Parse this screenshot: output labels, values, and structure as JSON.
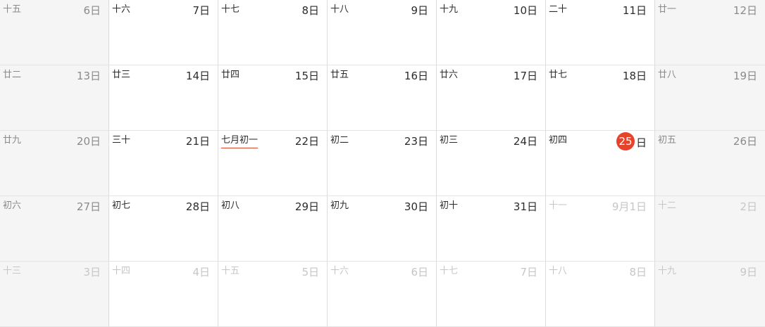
{
  "calendar": {
    "weeks": [
      [
        {
          "lunar": "十五",
          "day": "6日",
          "weekend": true
        },
        {
          "lunar": "十六",
          "day": "7日"
        },
        {
          "lunar": "十七",
          "day": "8日"
        },
        {
          "lunar": "十八",
          "day": "9日"
        },
        {
          "lunar": "十九",
          "day": "10日"
        },
        {
          "lunar": "二十",
          "day": "11日"
        },
        {
          "lunar": "廿一",
          "day": "12日",
          "weekend": true
        }
      ],
      [
        {
          "lunar": "廿二",
          "day": "13日",
          "weekend": true
        },
        {
          "lunar": "廿三",
          "day": "14日"
        },
        {
          "lunar": "廿四",
          "day": "15日"
        },
        {
          "lunar": "廿五",
          "day": "16日"
        },
        {
          "lunar": "廿六",
          "day": "17日"
        },
        {
          "lunar": "廿七",
          "day": "18日"
        },
        {
          "lunar": "廿八",
          "day": "19日",
          "weekend": true
        }
      ],
      [
        {
          "lunar": "廿九",
          "day": "20日",
          "weekend": true
        },
        {
          "lunar": "三十",
          "day": "21日"
        },
        {
          "lunar": "七月初一",
          "day": "22日",
          "month_start": true
        },
        {
          "lunar": "初二",
          "day": "23日"
        },
        {
          "lunar": "初三",
          "day": "24日"
        },
        {
          "lunar": "初四",
          "day": "25",
          "day_suffix": "日",
          "today": true
        },
        {
          "lunar": "初五",
          "day": "26日",
          "weekend": true
        }
      ],
      [
        {
          "lunar": "初六",
          "day": "27日",
          "weekend": true
        },
        {
          "lunar": "初七",
          "day": "28日"
        },
        {
          "lunar": "初八",
          "day": "29日"
        },
        {
          "lunar": "初九",
          "day": "30日"
        },
        {
          "lunar": "初十",
          "day": "31日"
        },
        {
          "lunar": "十一",
          "day": "9月1日",
          "other_month": true
        },
        {
          "lunar": "十二",
          "day": "2日",
          "weekend": true,
          "other_month": true
        }
      ],
      [
        {
          "lunar": "十三",
          "day": "3日",
          "weekend": true,
          "other_month": true
        },
        {
          "lunar": "十四",
          "day": "4日",
          "other_month": true
        },
        {
          "lunar": "十五",
          "day": "5日",
          "other_month": true
        },
        {
          "lunar": "十六",
          "day": "6日",
          "other_month": true
        },
        {
          "lunar": "十七",
          "day": "7日",
          "other_month": true
        },
        {
          "lunar": "十八",
          "day": "8日",
          "other_month": true
        },
        {
          "lunar": "十九",
          "day": "9日",
          "weekend": true,
          "other_month": true
        }
      ]
    ]
  },
  "colors": {
    "today_accent": "#e5432c",
    "month_start_underline": "#d9472b",
    "weekend_background": "#f5f5f5",
    "grid_line": "#dcdcdc"
  }
}
